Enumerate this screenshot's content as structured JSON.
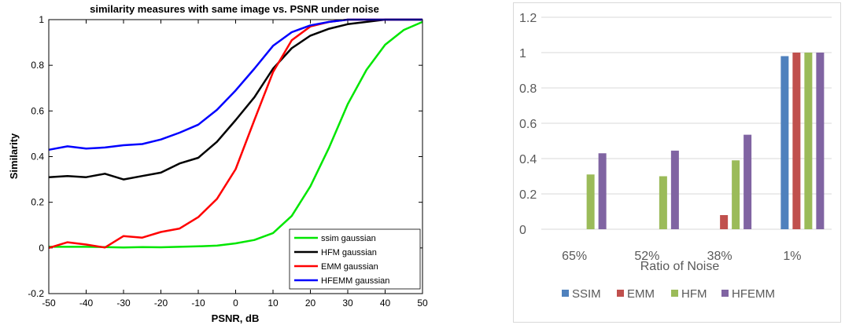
{
  "chart_data": [
    {
      "type": "line",
      "title": "similarity measures with same image vs. PSNR under noise",
      "xlabel": "PSNR, dB",
      "ylabel": "Similarity",
      "xlim": [
        -50,
        50
      ],
      "ylim": [
        -0.2,
        1
      ],
      "xticks": [
        -50,
        -40,
        -30,
        -20,
        -10,
        0,
        10,
        20,
        30,
        40,
        50
      ],
      "yticks": [
        -0.2,
        0,
        0.2,
        0.4,
        0.6,
        0.8,
        1
      ],
      "grid": false,
      "legend": "bottom-right",
      "x": [
        -50,
        -45,
        -40,
        -35,
        -30,
        -25,
        -20,
        -15,
        -10,
        -5,
        0,
        5,
        10,
        15,
        20,
        25,
        30,
        35,
        40,
        45,
        50
      ],
      "series": [
        {
          "name": "ssim gaussian",
          "color": "#00e600",
          "values": [
            0.005,
            0.005,
            0.005,
            0.004,
            0.002,
            0.004,
            0.003,
            0.005,
            0.007,
            0.01,
            0.02,
            0.035,
            0.065,
            0.14,
            0.27,
            0.44,
            0.63,
            0.78,
            0.89,
            0.955,
            0.99
          ]
        },
        {
          "name": "HFM gaussian",
          "color": "#000000",
          "values": [
            0.31,
            0.315,
            0.31,
            0.325,
            0.3,
            0.315,
            0.33,
            0.37,
            0.395,
            0.465,
            0.56,
            0.66,
            0.785,
            0.875,
            0.93,
            0.96,
            0.98,
            0.99,
            1.0,
            1.0,
            1.0
          ]
        },
        {
          "name": "EMM gaussian",
          "color": "#ff0000",
          "values": [
            0.0,
            0.025,
            0.015,
            0.002,
            0.052,
            0.045,
            0.07,
            0.085,
            0.135,
            0.215,
            0.345,
            0.56,
            0.77,
            0.91,
            0.97,
            0.99,
            1.0,
            1.0,
            1.0,
            1.0,
            1.0
          ]
        },
        {
          "name": "HFEMM gaussian",
          "color": "#0000ff",
          "values": [
            0.43,
            0.445,
            0.435,
            0.44,
            0.45,
            0.455,
            0.475,
            0.505,
            0.54,
            0.605,
            0.69,
            0.785,
            0.885,
            0.945,
            0.975,
            0.99,
            1.0,
            1.0,
            1.0,
            1.0,
            1.0
          ]
        }
      ]
    },
    {
      "type": "bar",
      "title": "",
      "xlabel": "Ratio of Noise",
      "ylabel": "",
      "ylim": [
        0,
        1.2
      ],
      "yticks": [
        0,
        0.2,
        0.4,
        0.6,
        0.8,
        1,
        1.2
      ],
      "grid": true,
      "legend": "bottom",
      "categories": [
        "65%",
        "52%",
        "38%",
        "1%"
      ],
      "series": [
        {
          "name": "SSIM",
          "color": "#4f81bd",
          "values": [
            0,
            0,
            0,
            0.98
          ]
        },
        {
          "name": "EMM",
          "color": "#c0504d",
          "values": [
            0,
            0,
            0.08,
            1.0
          ]
        },
        {
          "name": "HFM",
          "color": "#9bbb59",
          "values": [
            0.31,
            0.3,
            0.39,
            1.0
          ]
        },
        {
          "name": "HFEMM",
          "color": "#8064a2",
          "values": [
            0.43,
            0.445,
            0.535,
            1.0
          ]
        }
      ]
    }
  ]
}
